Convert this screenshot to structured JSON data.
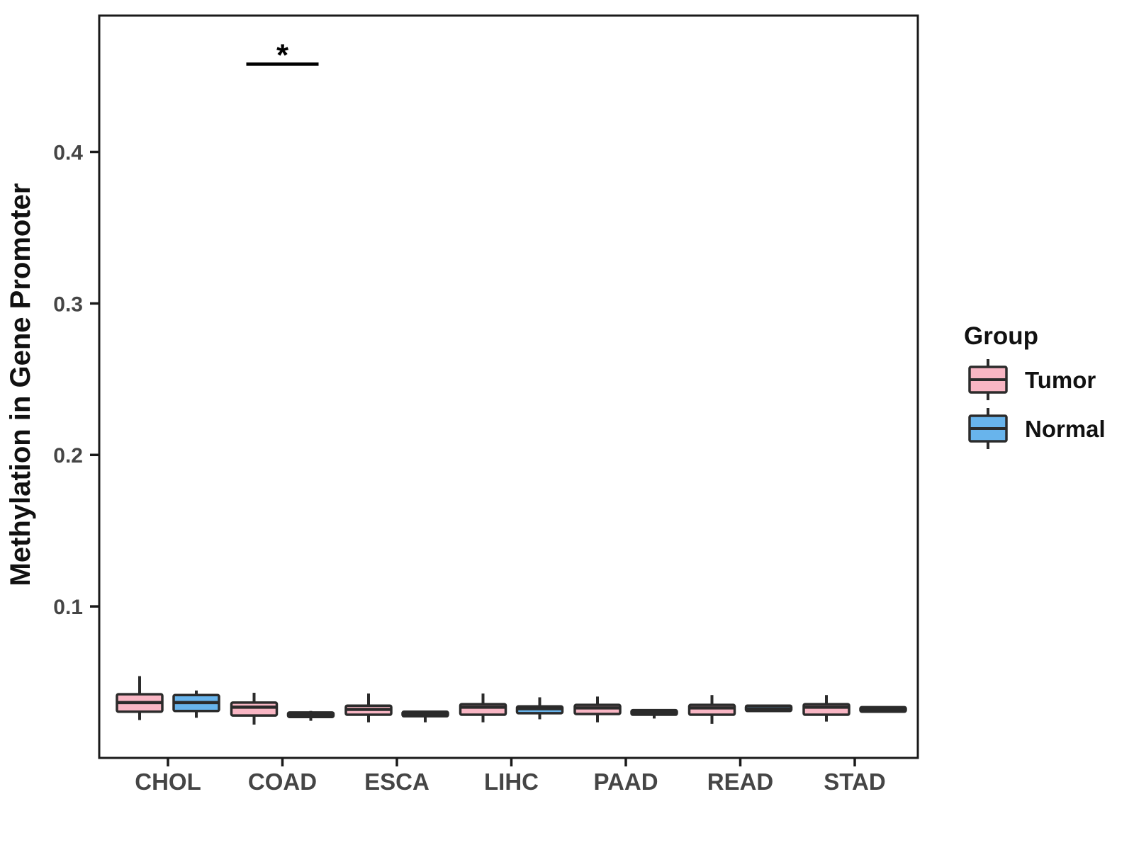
{
  "chart_data": {
    "type": "grouped_boxplot",
    "title": "",
    "xlabel": "",
    "ylabel": "Methylation in Gene Promoter",
    "categories": [
      "CHOL",
      "COAD",
      "ESCA",
      "LIHC",
      "PAAD",
      "READ",
      "STAD"
    ],
    "ylim": [
      0,
      0.49
    ],
    "yticks": [
      0.1,
      0.2,
      0.3,
      0.4
    ],
    "ytick_labels": [
      "0.1",
      "0.2",
      "0.3",
      "0.4"
    ],
    "grid": false,
    "legend": {
      "title": "Group",
      "position": "right",
      "items": [
        {
          "label": "Tumor",
          "color": "#F9B6C4"
        },
        {
          "label": "Normal",
          "color": "#68B4EC"
        }
      ]
    },
    "significance": [
      {
        "category": "COAD",
        "label": "*",
        "value": 0.458
      }
    ],
    "series": [
      {
        "name": "Tumor",
        "color": "#F9B6C4",
        "boxes": [
          {
            "category": "CHOL",
            "min": 0.025,
            "q1": 0.0305,
            "median": 0.0365,
            "q3": 0.042,
            "max": 0.054
          },
          {
            "category": "COAD",
            "min": 0.022,
            "q1": 0.028,
            "median": 0.0335,
            "q3": 0.0365,
            "max": 0.043
          },
          {
            "category": "ESCA",
            "min": 0.0235,
            "q1": 0.0285,
            "median": 0.032,
            "q3": 0.0345,
            "max": 0.0425
          },
          {
            "category": "LIHC",
            "min": 0.0235,
            "q1": 0.0285,
            "median": 0.0335,
            "q3": 0.0355,
            "max": 0.0425
          },
          {
            "category": "PAAD",
            "min": 0.0235,
            "q1": 0.029,
            "median": 0.033,
            "q3": 0.035,
            "max": 0.0405
          },
          {
            "category": "READ",
            "min": 0.0225,
            "q1": 0.0285,
            "median": 0.033,
            "q3": 0.035,
            "max": 0.0415
          },
          {
            "category": "STAD",
            "min": 0.024,
            "q1": 0.0285,
            "median": 0.0335,
            "q3": 0.0355,
            "max": 0.0415
          }
        ]
      },
      {
        "name": "Normal",
        "color": "#68B4EC",
        "boxes": [
          {
            "category": "CHOL",
            "min": 0.0265,
            "q1": 0.031,
            "median": 0.0365,
            "q3": 0.0415,
            "max": 0.0445
          },
          {
            "category": "COAD",
            "min": 0.0245,
            "q1": 0.027,
            "median": 0.0285,
            "q3": 0.03,
            "max": 0.031
          },
          {
            "category": "ESCA",
            "min": 0.0235,
            "q1": 0.0275,
            "median": 0.029,
            "q3": 0.0305,
            "max": 0.0305
          },
          {
            "category": "LIHC",
            "min": 0.0255,
            "q1": 0.0295,
            "median": 0.0325,
            "q3": 0.034,
            "max": 0.04
          },
          {
            "category": "PAAD",
            "min": 0.026,
            "q1": 0.0285,
            "median": 0.03,
            "q3": 0.0315,
            "max": 0.0315
          },
          {
            "category": "READ",
            "min": 0.0305,
            "q1": 0.031,
            "median": 0.0325,
            "q3": 0.0345,
            "max": 0.0345
          },
          {
            "category": "STAD",
            "min": 0.03,
            "q1": 0.0305,
            "median": 0.032,
            "q3": 0.0335,
            "max": 0.0335
          }
        ]
      }
    ]
  },
  "style": {
    "background": "#FFFFFF",
    "panel_border": "#1A1A1A",
    "box_border": "#2B2B2B",
    "axis_text_color": "#454545",
    "title_color": "#111111",
    "legend_text_color": "#111111",
    "significance_color": "#000000",
    "tumor_color": "#F9B6C4",
    "normal_color": "#68B4EC"
  }
}
